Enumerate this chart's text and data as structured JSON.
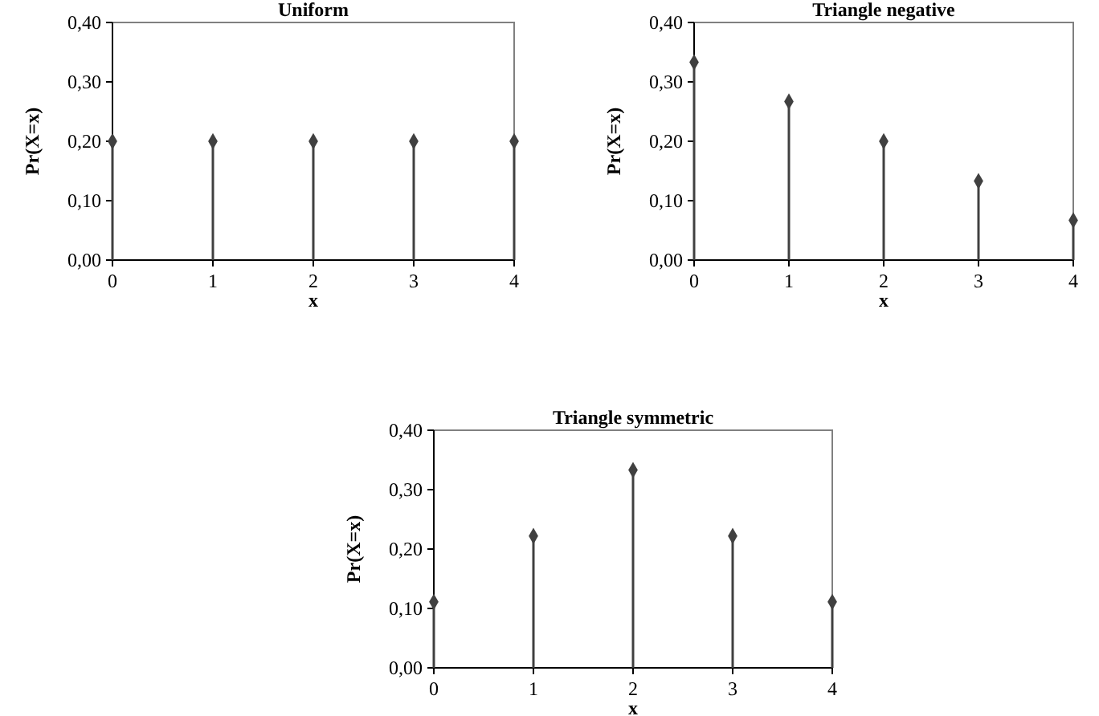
{
  "chart_data": [
    {
      "type": "lollipop",
      "title": "Uniform",
      "xlabel": "x",
      "ylabel": "Pr(X=x)",
      "x": [
        0,
        1,
        2,
        3,
        4
      ],
      "values": [
        0.2,
        0.2,
        0.2,
        0.2,
        0.2
      ],
      "color": "#404040",
      "marker": "diamond",
      "xlim": [
        0,
        4
      ],
      "xticks": [
        0,
        1,
        2,
        3,
        4
      ],
      "ylim": [
        0,
        0.4
      ],
      "yticks": [
        {
          "value": 0,
          "label": "0,00"
        },
        {
          "value": 0.1,
          "label": "0,10"
        },
        {
          "value": 0.2,
          "label": "0,20"
        },
        {
          "value": 0.3,
          "label": "0,30"
        },
        {
          "value": 0.4,
          "label": "0,40"
        }
      ]
    },
    {
      "type": "lollipop",
      "title": "Triangle negative",
      "xlabel": "x",
      "ylabel": "Pr(X=x)",
      "x": [
        0,
        1,
        2,
        3,
        4
      ],
      "values": [
        0.333,
        0.267,
        0.2,
        0.133,
        0.067
      ],
      "color": "#404040",
      "marker": "diamond",
      "xlim": [
        0,
        4
      ],
      "xticks": [
        0,
        1,
        2,
        3,
        4
      ],
      "ylim": [
        0,
        0.4
      ],
      "yticks": [
        {
          "value": 0,
          "label": "0,00"
        },
        {
          "value": 0.1,
          "label": "0,10"
        },
        {
          "value": 0.2,
          "label": "0,20"
        },
        {
          "value": 0.3,
          "label": "0,30"
        },
        {
          "value": 0.4,
          "label": "0,40"
        }
      ]
    },
    {
      "type": "lollipop",
      "title": "Triangle symmetric",
      "xlabel": "x",
      "ylabel": "Pr(X=x)",
      "x": [
        0,
        1,
        2,
        3,
        4
      ],
      "values": [
        0.111,
        0.222,
        0.333,
        0.222,
        0.111
      ],
      "color": "#404040",
      "marker": "diamond",
      "xlim": [
        0,
        4
      ],
      "xticks": [
        0,
        1,
        2,
        3,
        4
      ],
      "ylim": [
        0,
        0.4
      ],
      "yticks": [
        {
          "value": 0,
          "label": "0,00"
        },
        {
          "value": 0.1,
          "label": "0,10"
        },
        {
          "value": 0.2,
          "label": "0,20"
        },
        {
          "value": 0.3,
          "label": "0,30"
        },
        {
          "value": 0.4,
          "label": "0,40"
        }
      ]
    }
  ]
}
